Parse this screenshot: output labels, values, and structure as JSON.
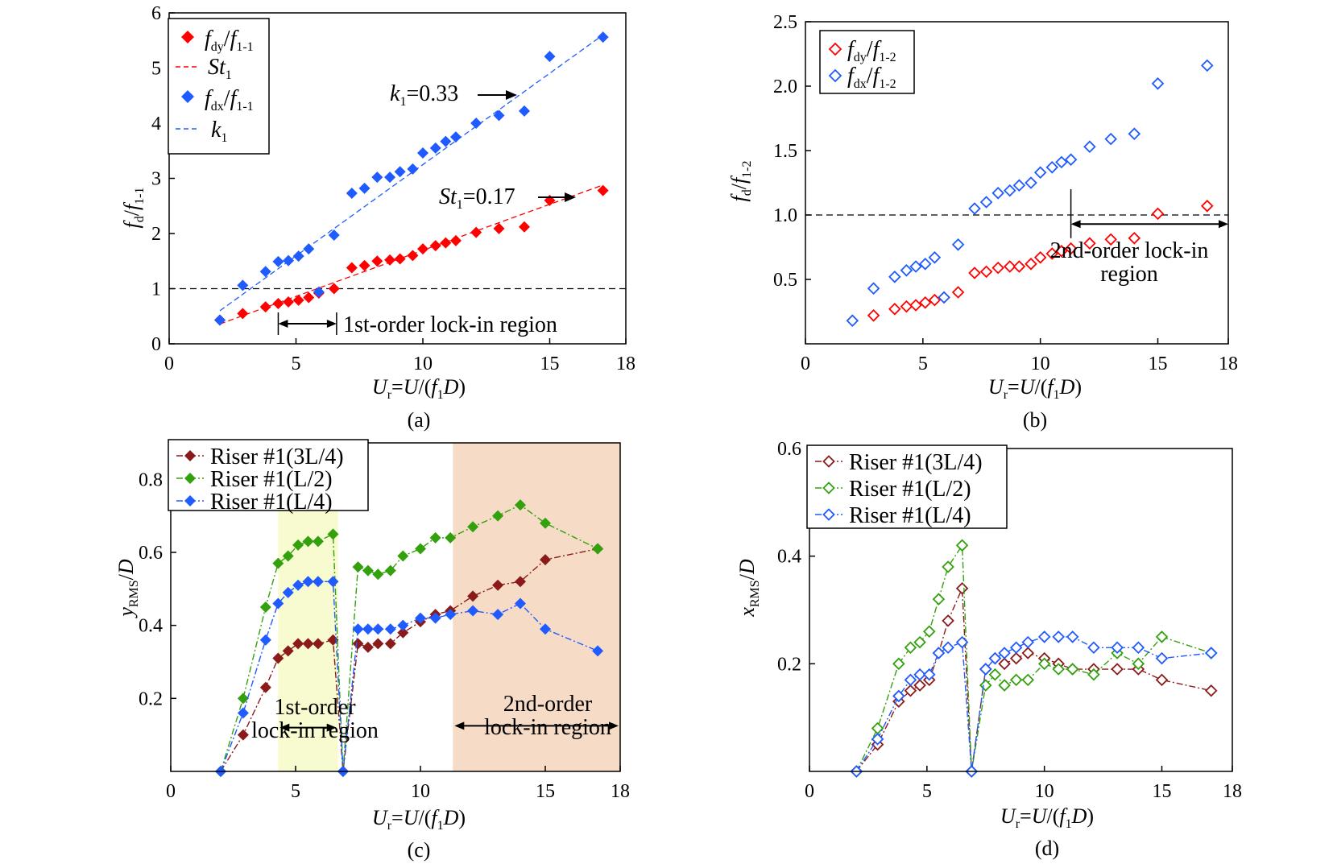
{
  "colors": {
    "red": "#ff0000",
    "blue": "#1f5bff",
    "dark_red": "#8b1a1a",
    "green": "#33a10d",
    "lock1_fill": "#f7fbcf",
    "lock2_fill": "#f6dcc6"
  },
  "chart_data": [
    {
      "panel": "a",
      "type": "scatter",
      "caption": "(a)",
      "xlabel": "U_r = U/(f_1 D)",
      "ylabel": "f_d/f_1-1",
      "xlim": [
        0,
        18
      ],
      "ylim": [
        0,
        6
      ],
      "xticks": [
        "0",
        "5",
        "10",
        "15",
        "18"
      ],
      "yticks": [
        "0",
        "1",
        "2",
        "3",
        "4",
        "5",
        "6"
      ],
      "reference_line_y": 1,
      "series": [
        {
          "name": "f_dy/f_1-1",
          "x": [
            2.0,
            2.9,
            3.8,
            4.3,
            4.7,
            5.1,
            5.5,
            5.9,
            6.5,
            7.2,
            7.7,
            8.2,
            8.7,
            9.1,
            9.6,
            10.0,
            10.5,
            10.9,
            11.3,
            12.1,
            13.0,
            14.0,
            15.0,
            17.1
          ],
          "y": [
            0.43,
            0.55,
            0.67,
            0.73,
            0.76,
            0.79,
            0.84,
            0.92,
            1.0,
            1.38,
            1.42,
            1.5,
            1.52,
            1.54,
            1.6,
            1.72,
            1.78,
            1.83,
            1.87,
            2.02,
            2.09,
            2.12,
            2.6,
            2.78
          ]
        },
        {
          "name": "f_dx/f_1-1",
          "x": [
            2.0,
            2.9,
            3.8,
            4.3,
            4.7,
            5.1,
            5.5,
            5.9,
            6.5,
            7.2,
            7.7,
            8.2,
            8.7,
            9.1,
            9.6,
            10.0,
            10.5,
            10.9,
            11.3,
            12.1,
            13.0,
            14.0,
            15.0,
            17.1
          ],
          "y": [
            0.43,
            1.06,
            1.31,
            1.49,
            1.51,
            1.59,
            1.72,
            0.94,
            1.97,
            2.73,
            2.82,
            3.02,
            3.02,
            3.12,
            3.17,
            3.46,
            3.55,
            3.67,
            3.75,
            4.0,
            4.14,
            4.22,
            5.21,
            5.56
          ]
        }
      ],
      "fit_lines": [
        {
          "name": "St_1",
          "x": [
            2.0,
            17.1
          ],
          "y": [
            0.36,
            2.88
          ]
        },
        {
          "name": "k_1",
          "x": [
            2.0,
            17.1
          ],
          "y": [
            0.6,
            5.6
          ]
        }
      ],
      "annotations": {
        "k_value": "=0.33",
        "st_value": "=0.17",
        "lock_in": "1st-order lock-in region"
      }
    },
    {
      "panel": "b",
      "type": "scatter",
      "caption": "(b)",
      "xlabel": "U_r = U/(f_1 D)",
      "ylabel": "f_d/f_1-2",
      "xlim": [
        0,
        18
      ],
      "ylim": [
        0,
        2.5
      ],
      "xticks": [
        "0",
        "5",
        "10",
        "15",
        "18"
      ],
      "yticks": [
        "0.5",
        "1.0",
        "1.5",
        "2.0",
        "2.5"
      ],
      "reference_line_y": 1.0,
      "series": [
        {
          "name": "f_dy/f_1-2",
          "x": [
            2.9,
            3.8,
            4.3,
            4.7,
            5.1,
            5.5,
            5.9,
            6.5,
            7.2,
            7.7,
            8.2,
            8.7,
            9.1,
            9.6,
            10.0,
            10.5,
            10.9,
            11.3,
            12.1,
            13.0,
            14.0,
            15.0,
            17.1
          ],
          "y": [
            0.22,
            0.27,
            0.29,
            0.3,
            0.32,
            0.34,
            0.36,
            0.4,
            0.55,
            0.56,
            0.59,
            0.6,
            0.6,
            0.62,
            0.67,
            0.7,
            0.72,
            0.74,
            0.78,
            0.81,
            0.82,
            1.01,
            1.07
          ]
        },
        {
          "name": "f_dx/f_1-2",
          "x": [
            2.0,
            2.9,
            3.8,
            4.3,
            4.7,
            5.1,
            5.5,
            5.9,
            6.5,
            7.2,
            7.7,
            8.2,
            8.7,
            9.1,
            9.6,
            10.0,
            10.5,
            10.9,
            11.3,
            12.1,
            13.0,
            14.0,
            15.0,
            17.1
          ],
          "y": [
            0.18,
            0.43,
            0.52,
            0.57,
            0.6,
            0.62,
            0.67,
            0.36,
            0.77,
            1.05,
            1.1,
            1.17,
            1.19,
            1.23,
            1.25,
            1.33,
            1.37,
            1.41,
            1.43,
            1.53,
            1.59,
            1.63,
            2.02,
            2.16
          ]
        }
      ],
      "annotations": {
        "lock_in": [
          "2nd-order lock-in",
          "region"
        ]
      }
    },
    {
      "panel": "c",
      "type": "line",
      "caption": "(c)",
      "xlabel": "U_r = U/(f_1 D)",
      "ylabel": "y_RMS/D",
      "xlim": [
        0,
        18
      ],
      "ylim": [
        0,
        0.9
      ],
      "xticks": [
        "0",
        "5",
        "10",
        "15",
        "18"
      ],
      "yticks": [
        "0.2",
        "0.4",
        "0.6",
        "0.8"
      ],
      "lock_in_regions": [
        [
          4.3,
          6.7
        ],
        [
          11.3,
          18
        ]
      ],
      "series": [
        {
          "name": "Riser #1(3L/4)",
          "x": [
            2.0,
            2.9,
            3.8,
            4.3,
            4.7,
            5.1,
            5.5,
            5.9,
            6.5,
            6.9,
            7.5,
            7.9,
            8.3,
            8.8,
            9.3,
            10.0,
            10.6,
            11.2,
            12.1,
            13.1,
            14.0,
            15.0,
            17.1
          ],
          "y": [
            0.0,
            0.1,
            0.23,
            0.31,
            0.33,
            0.35,
            0.35,
            0.35,
            0.36,
            0.0,
            0.35,
            0.34,
            0.35,
            0.35,
            0.38,
            0.41,
            0.43,
            0.44,
            0.48,
            0.51,
            0.52,
            0.58,
            0.61
          ]
        },
        {
          "name": "Riser #1(L/2)",
          "x": [
            2.0,
            2.9,
            3.8,
            4.3,
            4.7,
            5.1,
            5.5,
            5.9,
            6.5,
            6.9,
            7.5,
            7.9,
            8.3,
            8.8,
            9.3,
            10.0,
            10.6,
            11.2,
            12.1,
            13.1,
            14.0,
            15.0,
            17.1
          ],
          "y": [
            0.0,
            0.2,
            0.45,
            0.57,
            0.59,
            0.62,
            0.63,
            0.63,
            0.65,
            0.0,
            0.56,
            0.55,
            0.54,
            0.55,
            0.59,
            0.61,
            0.64,
            0.64,
            0.67,
            0.7,
            0.73,
            0.68,
            0.61
          ]
        },
        {
          "name": "Riser #1(L/4)",
          "x": [
            2.0,
            2.9,
            3.8,
            4.3,
            4.7,
            5.1,
            5.5,
            5.9,
            6.5,
            6.9,
            7.5,
            7.9,
            8.3,
            8.8,
            9.3,
            10.0,
            10.6,
            11.2,
            12.1,
            13.1,
            14.0,
            15.0,
            17.1
          ],
          "y": [
            0.0,
            0.16,
            0.36,
            0.46,
            0.49,
            0.51,
            0.52,
            0.52,
            0.52,
            0.0,
            0.39,
            0.39,
            0.39,
            0.39,
            0.4,
            0.42,
            0.42,
            0.43,
            0.44,
            0.43,
            0.46,
            0.39,
            0.33
          ]
        }
      ],
      "annotations": {
        "lock1": [
          "1st-order",
          "lock-in region"
        ],
        "lock2": [
          "2nd-order",
          "lock-in region"
        ]
      }
    },
    {
      "panel": "d",
      "type": "line",
      "caption": "(d)",
      "xlabel": "U_r = U/(f_1 D)",
      "ylabel": "x_RMS/D",
      "xlim": [
        0,
        18
      ],
      "ylim": [
        0,
        0.6
      ],
      "xticks": [
        "0",
        "5",
        "10",
        "15",
        "18"
      ],
      "yticks": [
        "0.2",
        "0.4",
        "0.6"
      ],
      "series": [
        {
          "name": "Riser #1(3L/4)",
          "x": [
            2.0,
            2.9,
            3.8,
            4.3,
            4.7,
            5.1,
            5.5,
            5.9,
            6.5,
            6.9,
            7.5,
            7.9,
            8.3,
            8.8,
            9.3,
            10.0,
            10.6,
            11.2,
            12.1,
            13.1,
            14.0,
            15.0,
            17.1
          ],
          "y": [
            0.0,
            0.05,
            0.13,
            0.15,
            0.16,
            0.17,
            0.22,
            0.28,
            0.34,
            0.0,
            0.19,
            0.21,
            0.2,
            0.21,
            0.22,
            0.21,
            0.2,
            0.19,
            0.19,
            0.19,
            0.19,
            0.17,
            0.15
          ]
        },
        {
          "name": "Riser #1(L/2)",
          "x": [
            2.0,
            2.9,
            3.8,
            4.3,
            4.7,
            5.1,
            5.5,
            5.9,
            6.5,
            6.9,
            7.5,
            7.9,
            8.3,
            8.8,
            9.3,
            10.0,
            10.6,
            11.2,
            12.1,
            13.1,
            14.0,
            15.0,
            17.1
          ],
          "y": [
            0.0,
            0.08,
            0.2,
            0.23,
            0.24,
            0.26,
            0.32,
            0.38,
            0.42,
            0.0,
            0.16,
            0.18,
            0.16,
            0.17,
            0.17,
            0.2,
            0.19,
            0.19,
            0.18,
            0.22,
            0.2,
            0.25,
            0.22
          ]
        },
        {
          "name": "Riser #1(L/4)",
          "x": [
            2.0,
            2.9,
            3.8,
            4.3,
            4.7,
            5.1,
            5.5,
            5.9,
            6.5,
            6.9,
            7.5,
            7.9,
            8.3,
            8.8,
            9.3,
            10.0,
            10.6,
            11.2,
            12.1,
            13.1,
            14.0,
            15.0,
            17.1
          ],
          "y": [
            0.0,
            0.06,
            0.14,
            0.17,
            0.18,
            0.18,
            0.22,
            0.23,
            0.24,
            0.0,
            0.19,
            0.21,
            0.22,
            0.23,
            0.24,
            0.25,
            0.25,
            0.25,
            0.23,
            0.23,
            0.23,
            0.21,
            0.22
          ]
        }
      ]
    }
  ]
}
